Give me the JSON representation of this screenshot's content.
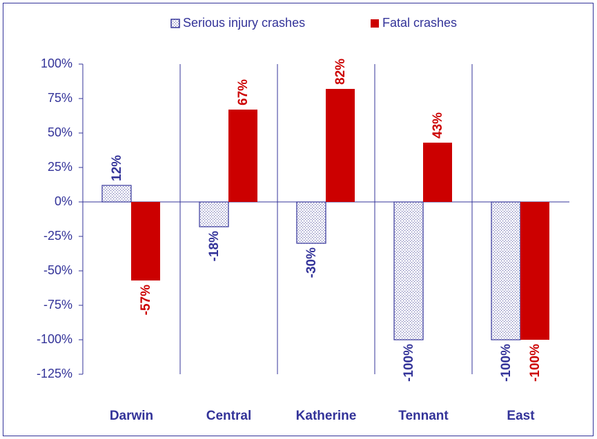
{
  "chart_data": {
    "type": "bar",
    "categories": [
      "Darwin",
      "Central",
      "Katherine",
      "Tennant",
      "East"
    ],
    "series": [
      {
        "name": "Serious injury crashes",
        "color": "#333399",
        "pattern": "dots",
        "values": [
          12,
          -18,
          -30,
          -100,
          -100
        ],
        "value_labels": [
          "12%",
          "-18%",
          "-30%",
          "-100%",
          "-100%"
        ]
      },
      {
        "name": "Fatal crashes",
        "color": "#cc0000",
        "values": [
          -57,
          67,
          82,
          43,
          -100
        ],
        "value_labels": [
          "-57%",
          "67%",
          "82%",
          "43%",
          "-100%"
        ]
      }
    ],
    "ylim": [
      -125,
      100
    ],
    "yticks": [
      {
        "value": -125,
        "label": "-125%"
      },
      {
        "value": -100,
        "label": "-100%"
      },
      {
        "value": -75,
        "label": "-75%"
      },
      {
        "value": -50,
        "label": "-50%"
      },
      {
        "value": -25,
        "label": "-25%"
      },
      {
        "value": 0,
        "label": "0%"
      },
      {
        "value": 25,
        "label": "25%"
      },
      {
        "value": 50,
        "label": "50%"
      },
      {
        "value": 75,
        "label": "75%"
      },
      {
        "value": 100,
        "label": "100%"
      }
    ],
    "legend": "top"
  }
}
